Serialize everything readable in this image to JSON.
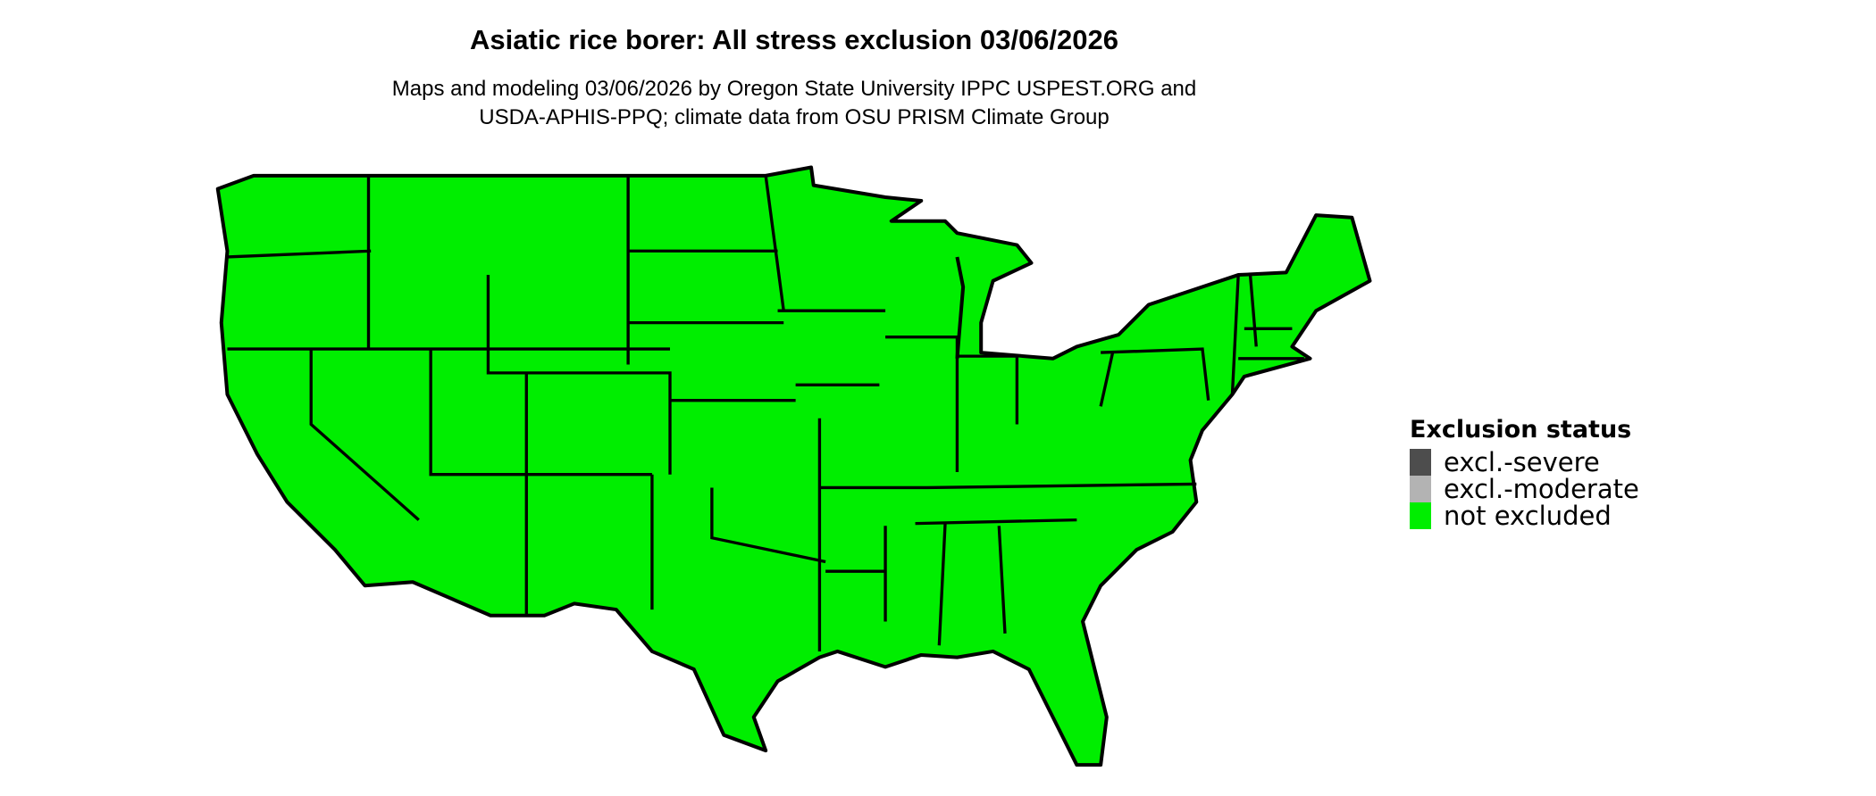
{
  "title": "Asiatic rice borer: All stress exclusion 03/06/2026",
  "subtitle_lines": [
    "Maps and modeling 03/06/2026 by Oregon State University IPPC USPEST.ORG and",
    "USDA-APHIS-PPQ; climate data from OSU PRISM Climate Group"
  ],
  "map": {
    "region": "Contiguous United States",
    "fill_color": "#00ee00",
    "status_shown": "not excluded"
  },
  "legend": {
    "title": "Exclusion status",
    "items": [
      {
        "label": "excl.-severe",
        "color": "#4d4d4d"
      },
      {
        "label": "excl.-moderate",
        "color": "#b3b3b3"
      },
      {
        "label": "not excluded",
        "color": "#00ee00"
      }
    ]
  }
}
